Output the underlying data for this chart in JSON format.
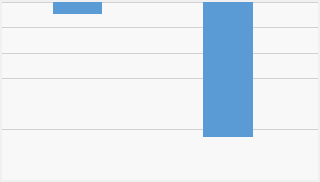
{
  "bar_color": "#5B9BD5",
  "background_color": "#F0F0F0",
  "plot_area_color": "#F8F8F8",
  "grid_color": "#D0D0D0",
  "bar1_x": 1,
  "bar2_x": 3,
  "bar1_value": -0.35,
  "bar2_value": -3.8,
  "bar_width": 0.65,
  "ylim_top": 0.0,
  "ylim_bottom": -5.0,
  "xlim": [
    0,
    4.2
  ],
  "n_gridlines": 7,
  "figsize": [
    4.65,
    2.65
  ],
  "dpi": 100
}
